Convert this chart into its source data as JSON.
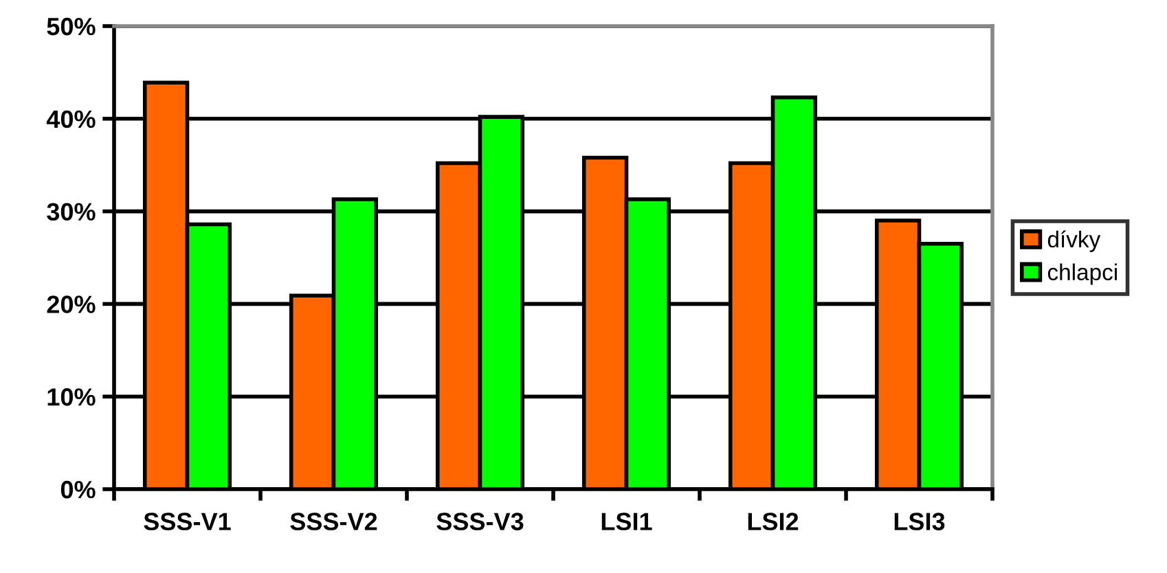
{
  "chart_data": {
    "type": "bar",
    "categories": [
      "SSS-V1",
      "SSS-V2",
      "SSS-V3",
      "LSI1",
      "LSI2",
      "LSI3"
    ],
    "series": [
      {
        "name": "dívky",
        "color": "#ff6600",
        "values": [
          43.9,
          20.9,
          35.2,
          35.8,
          35.2,
          29.0
        ]
      },
      {
        "name": "chlapci",
        "color": "#00ff00",
        "values": [
          28.6,
          31.3,
          40.2,
          31.3,
          42.3,
          26.5
        ]
      }
    ],
    "ylim": [
      0,
      50
    ],
    "yticks": [
      {
        "value": 0,
        "label": "0%"
      },
      {
        "value": 10,
        "label": "10%"
      },
      {
        "value": 20,
        "label": "20%"
      },
      {
        "value": 30,
        "label": "30%"
      },
      {
        "value": 40,
        "label": "40%"
      },
      {
        "value": 50,
        "label": "50%"
      }
    ],
    "grid": "y",
    "legend": "right"
  }
}
